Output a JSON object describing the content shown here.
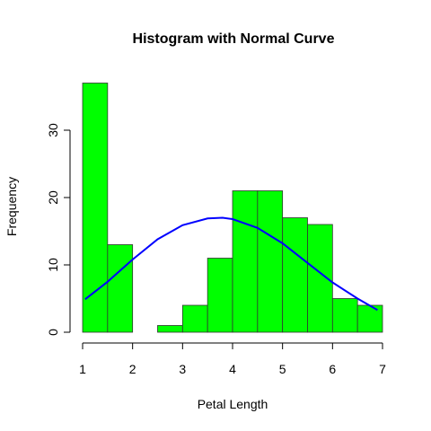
{
  "chart_data": {
    "type": "bar",
    "title": "Histogram with Normal Curve",
    "xlabel": "Petal Length",
    "ylabel": "Frequency",
    "bins": [
      {
        "start": 1.0,
        "end": 1.5,
        "count": 37
      },
      {
        "start": 1.5,
        "end": 2.0,
        "count": 13
      },
      {
        "start": 2.0,
        "end": 2.5,
        "count": 0
      },
      {
        "start": 2.5,
        "end": 3.0,
        "count": 1
      },
      {
        "start": 3.0,
        "end": 3.5,
        "count": 4
      },
      {
        "start": 3.5,
        "end": 4.0,
        "count": 11
      },
      {
        "start": 4.0,
        "end": 4.5,
        "count": 21
      },
      {
        "start": 4.5,
        "end": 5.0,
        "count": 21
      },
      {
        "start": 5.0,
        "end": 5.5,
        "count": 17
      },
      {
        "start": 5.5,
        "end": 6.0,
        "count": 16
      },
      {
        "start": 6.0,
        "end": 6.5,
        "count": 5
      },
      {
        "start": 6.5,
        "end": 7.0,
        "count": 4
      }
    ],
    "normal_curve": {
      "points": [
        [
          1.05,
          4.9
        ],
        [
          1.5,
          7.5
        ],
        [
          2.0,
          10.8
        ],
        [
          2.5,
          13.8
        ],
        [
          3.0,
          15.9
        ],
        [
          3.5,
          16.9
        ],
        [
          3.8,
          17.0
        ],
        [
          4.0,
          16.8
        ],
        [
          4.5,
          15.5
        ],
        [
          5.0,
          13.2
        ],
        [
          5.5,
          10.3
        ],
        [
          6.0,
          7.4
        ],
        [
          6.5,
          5.0
        ],
        [
          6.9,
          3.3
        ]
      ]
    },
    "xlim": [
      1,
      7
    ],
    "ylim": [
      0,
      37
    ],
    "x_ticks": [
      1,
      2,
      3,
      4,
      5,
      6,
      7
    ],
    "y_ticks": [
      0,
      10,
      20,
      30
    ],
    "grid": false,
    "colors": {
      "bar_fill": "#00ff00",
      "bar_border": "#333333",
      "curve": "#0000ff"
    }
  }
}
